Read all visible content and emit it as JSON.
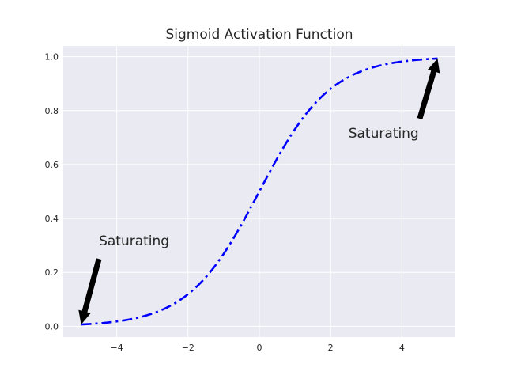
{
  "chart_data": {
    "type": "line",
    "title": "Sigmoid Activation Function",
    "xlabel": "",
    "ylabel": "",
    "xlim": [
      -5.5,
      5.5
    ],
    "ylim": [
      -0.04,
      1.04
    ],
    "x_ticks": [
      -4,
      -2,
      0,
      2,
      4
    ],
    "x_tick_labels": [
      "−4",
      "−2",
      "0",
      "2",
      "4"
    ],
    "y_ticks": [
      0.0,
      0.2,
      0.4,
      0.6,
      0.8,
      1.0
    ],
    "y_tick_labels": [
      "0.0",
      "0.2",
      "0.4",
      "0.6",
      "0.8",
      "1.0"
    ],
    "grid": true,
    "series": [
      {
        "function": "sigmoid",
        "x_range": [
          -5,
          5
        ],
        "color": "#0000ff",
        "linestyle": "dash-dot",
        "x": [
          -5,
          -4,
          -3,
          -2,
          -1,
          0,
          1,
          2,
          3,
          4,
          5
        ],
        "values": [
          0.0067,
          0.018,
          0.0474,
          0.1192,
          0.2689,
          0.5,
          0.7311,
          0.8808,
          0.9526,
          0.982,
          0.9933
        ]
      }
    ],
    "annotations": [
      {
        "text": "Saturating",
        "text_pos": [
          -4.5,
          0.3
        ],
        "arrow_tail": [
          -4.5,
          0.25
        ],
        "arrow_head": [
          -5,
          0.0067
        ]
      },
      {
        "text": "Saturating",
        "text_pos": [
          2.5,
          0.7
        ],
        "arrow_tail": [
          4.5,
          0.77
        ],
        "arrow_head": [
          5,
          0.9933
        ]
      }
    ],
    "colors": {
      "plot_background": "#eaeaf2",
      "grid": "#ffffff",
      "line": "#0000ff",
      "arrow": "#000000",
      "text": "#262626"
    }
  }
}
